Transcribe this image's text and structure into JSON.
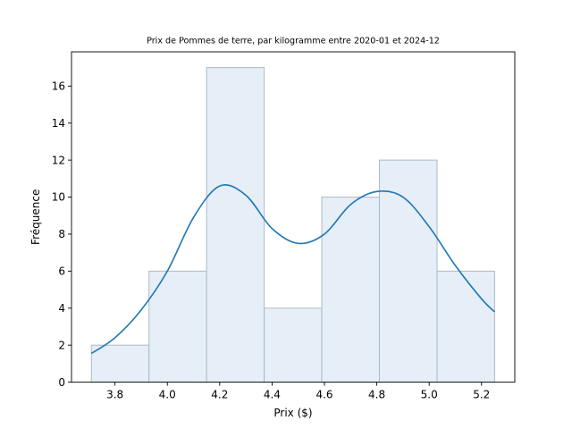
{
  "chart_data": {
    "type": "bar",
    "subtype": "histogram-with-density",
    "title": "Prix de Pommes de terre, par kilogramme entre 2020-01 et 2024-12",
    "xlabel": "Prix ($)",
    "ylabel": "Fréquence",
    "xlim": [
      3.634,
      5.327
    ],
    "ylim": [
      0,
      17.85
    ],
    "xticks": [
      3.8,
      4.0,
      4.2,
      4.4,
      4.6,
      4.8,
      5.0,
      5.2
    ],
    "xtick_labels": [
      "3.8",
      "4.0",
      "4.2",
      "4.4",
      "4.6",
      "4.8",
      "5.0",
      "5.2"
    ],
    "yticks": [
      0,
      2,
      4,
      6,
      8,
      10,
      12,
      14,
      16
    ],
    "ytick_labels": [
      "0",
      "2",
      "4",
      "6",
      "8",
      "10",
      "12",
      "14",
      "16"
    ],
    "bins": [
      {
        "start": 3.71,
        "end": 3.93,
        "count": 2
      },
      {
        "start": 3.93,
        "end": 4.15,
        "count": 6
      },
      {
        "start": 4.15,
        "end": 4.37,
        "count": 17
      },
      {
        "start": 4.37,
        "end": 4.59,
        "count": 4
      },
      {
        "start": 4.59,
        "end": 4.81,
        "count": 10
      },
      {
        "start": 4.81,
        "end": 5.03,
        "count": 12
      },
      {
        "start": 5.03,
        "end": 5.25,
        "count": 6
      }
    ],
    "density_curve": {
      "x": [
        3.71,
        3.8,
        3.9,
        4.0,
        4.1,
        4.2,
        4.3,
        4.4,
        4.5,
        4.6,
        4.7,
        4.8,
        4.9,
        5.0,
        5.1,
        5.2,
        5.25
      ],
      "y": [
        1.55,
        2.4,
        3.9,
        6.0,
        8.9,
        10.6,
        10.1,
        8.3,
        7.5,
        8.0,
        9.6,
        10.3,
        10.0,
        8.4,
        6.3,
        4.5,
        3.8
      ]
    },
    "bar_fill": "#e6eef7",
    "bar_edge": "#aabbc8",
    "curve_color": "#1f77b4",
    "grid": false
  }
}
